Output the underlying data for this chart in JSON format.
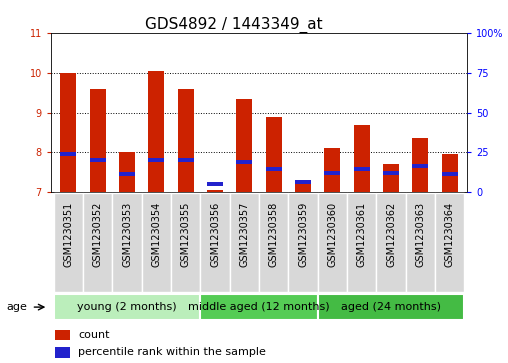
{
  "title": "GDS4892 / 1443349_at",
  "samples": [
    "GSM1230351",
    "GSM1230352",
    "GSM1230353",
    "GSM1230354",
    "GSM1230355",
    "GSM1230356",
    "GSM1230357",
    "GSM1230358",
    "GSM1230359",
    "GSM1230360",
    "GSM1230361",
    "GSM1230362",
    "GSM1230363",
    "GSM1230364"
  ],
  "count_values": [
    10.0,
    9.6,
    8.0,
    10.05,
    9.6,
    7.05,
    9.35,
    8.9,
    7.3,
    8.1,
    8.7,
    7.7,
    8.35,
    7.95
  ],
  "percentile_values": [
    7.95,
    7.8,
    7.45,
    7.8,
    7.8,
    7.22,
    7.75,
    7.58,
    7.26,
    7.48,
    7.58,
    7.48,
    7.65,
    7.45
  ],
  "ymin": 7.0,
  "ymax": 11.0,
  "yticks": [
    7,
    8,
    9,
    10,
    11
  ],
  "right_ytick_labels": [
    "0",
    "25",
    "50",
    "75",
    "100%"
  ],
  "right_ytick_positions": [
    7.0,
    8.0,
    9.0,
    10.0,
    11.0
  ],
  "bar_color": "#cc2200",
  "percentile_color": "#2222cc",
  "bar_width": 0.55,
  "groups": [
    {
      "label": "young (2 months)",
      "start": 0,
      "end": 4,
      "color": "#bbeebb"
    },
    {
      "label": "middle aged (12 months)",
      "start": 5,
      "end": 8,
      "color": "#55cc55"
    },
    {
      "label": "aged (24 months)",
      "start": 9,
      "end": 13,
      "color": "#44bb44"
    }
  ],
  "age_label": "age",
  "legend_count_label": "count",
  "legend_percentile_label": "percentile rank within the sample",
  "title_fontsize": 11,
  "tick_fontsize": 7,
  "label_fontsize": 8,
  "group_fontsize": 8
}
